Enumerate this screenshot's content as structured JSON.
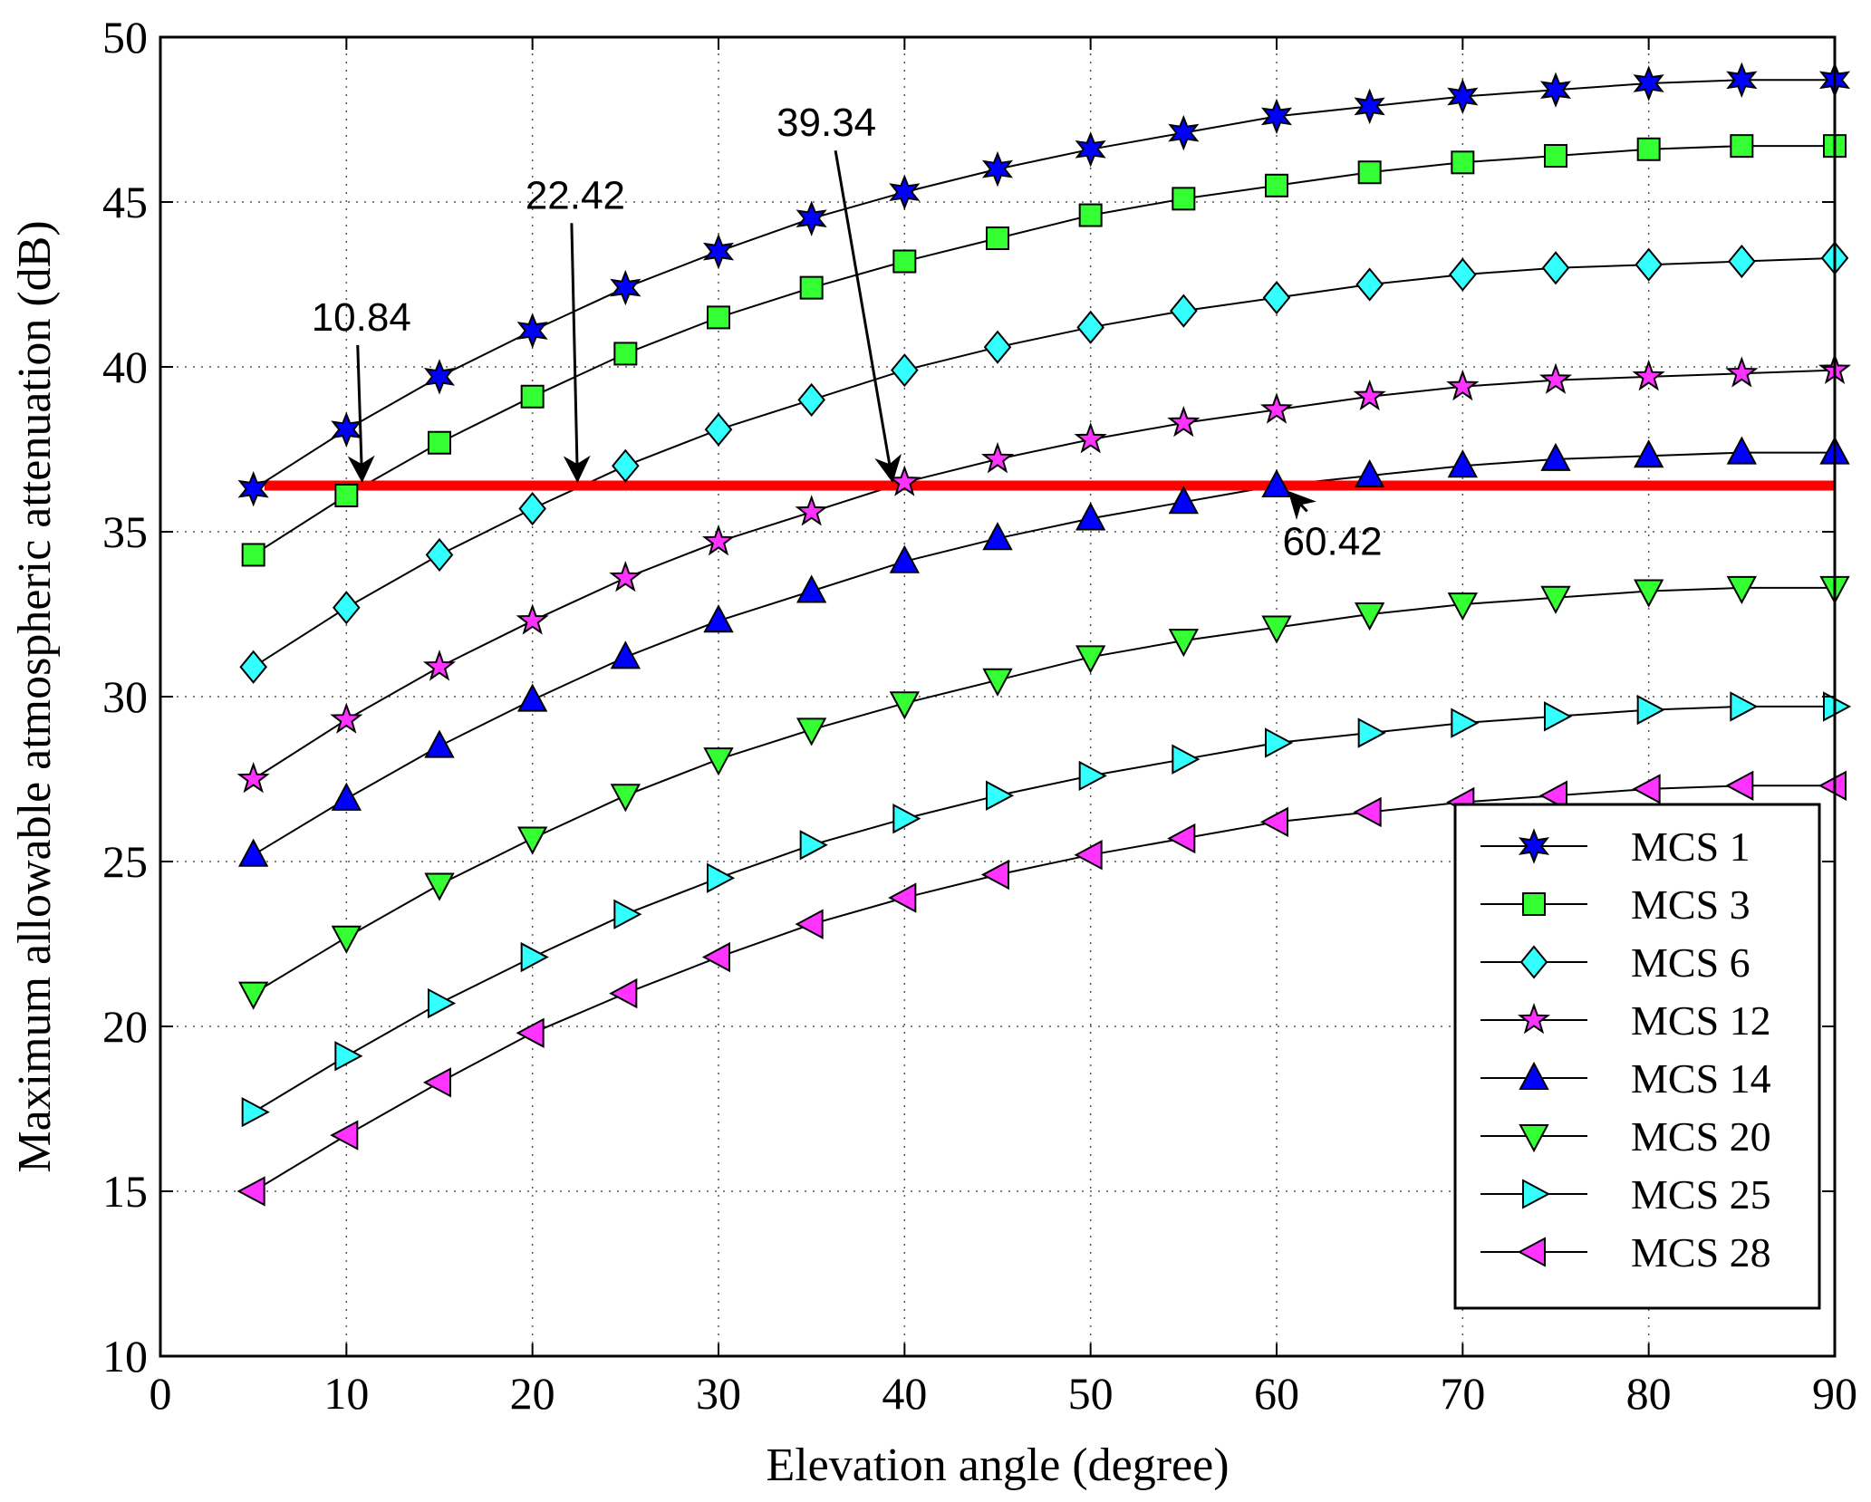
{
  "chart_data": {
    "type": "line",
    "title": "",
    "xlabel": "Elevation angle (degree)",
    "ylabel": "Maximum allowable atmospheric attenuation (dB)",
    "xlim": [
      0,
      90
    ],
    "ylim": [
      10,
      50
    ],
    "xticks": [
      0,
      10,
      20,
      30,
      40,
      50,
      60,
      70,
      80,
      90
    ],
    "yticks": [
      10,
      15,
      20,
      25,
      30,
      35,
      40,
      45,
      50
    ],
    "grid": true,
    "legend_position": "bottom-right",
    "x": [
      5,
      10,
      15,
      20,
      25,
      30,
      35,
      40,
      45,
      50,
      55,
      60,
      65,
      70,
      75,
      80,
      85,
      90
    ],
    "series": [
      {
        "name": "MCS 1",
        "marker": "hexagram",
        "color": "#0000ff",
        "values": [
          36.3,
          38.1,
          39.7,
          41.1,
          42.4,
          43.5,
          44.5,
          45.3,
          46.0,
          46.6,
          47.1,
          47.6,
          47.9,
          48.2,
          48.4,
          48.6,
          48.7,
          48.7
        ]
      },
      {
        "name": "MCS 3",
        "marker": "square",
        "color": "#33ff33",
        "values": [
          34.3,
          36.1,
          37.7,
          39.1,
          40.4,
          41.5,
          42.4,
          43.2,
          43.9,
          44.6,
          45.1,
          45.5,
          45.9,
          46.2,
          46.4,
          46.6,
          46.7,
          46.7
        ]
      },
      {
        "name": "MCS 6",
        "marker": "diamond",
        "color": "#33ffff",
        "values": [
          30.9,
          32.7,
          34.3,
          35.7,
          37.0,
          38.1,
          39.0,
          39.9,
          40.6,
          41.2,
          41.7,
          42.1,
          42.5,
          42.8,
          43.0,
          43.1,
          43.2,
          43.3
        ]
      },
      {
        "name": "MCS 12",
        "marker": "pentagram",
        "color": "#ff33ff",
        "values": [
          27.5,
          29.3,
          30.9,
          32.3,
          33.6,
          34.7,
          35.6,
          36.5,
          37.2,
          37.8,
          38.3,
          38.7,
          39.1,
          39.4,
          39.6,
          39.7,
          39.8,
          39.9
        ]
      },
      {
        "name": "MCS 14",
        "marker": "triangle-up",
        "color": "#0000ff",
        "values": [
          25.2,
          26.9,
          28.5,
          29.9,
          31.2,
          32.3,
          33.2,
          34.1,
          34.8,
          35.4,
          35.9,
          36.4,
          36.7,
          37.0,
          37.2,
          37.3,
          37.4,
          37.4
        ]
      },
      {
        "name": "MCS 20",
        "marker": "triangle-down",
        "color": "#33ff33",
        "values": [
          21.0,
          22.7,
          24.3,
          25.7,
          27.0,
          28.1,
          29.0,
          29.8,
          30.5,
          31.2,
          31.7,
          32.1,
          32.5,
          32.8,
          33.0,
          33.2,
          33.3,
          33.3
        ]
      },
      {
        "name": "MCS 25",
        "marker": "triangle-right",
        "color": "#33ffff",
        "values": [
          17.4,
          19.1,
          20.7,
          22.1,
          23.4,
          24.5,
          25.5,
          26.3,
          27.0,
          27.6,
          28.1,
          28.6,
          28.9,
          29.2,
          29.4,
          29.6,
          29.7,
          29.7
        ]
      },
      {
        "name": "MCS 28",
        "marker": "triangle-left",
        "color": "#ff33ff",
        "values": [
          15.0,
          16.7,
          18.3,
          19.8,
          21.0,
          22.1,
          23.1,
          23.9,
          24.6,
          25.2,
          25.7,
          26.2,
          26.5,
          26.8,
          27.0,
          27.2,
          27.3,
          27.3
        ]
      }
    ],
    "threshold_line": {
      "y": 36.4,
      "color": "#ff0000"
    },
    "annotations": [
      {
        "text": "10.84",
        "point": [
          10.84,
          36.4
        ],
        "label_at": [
          10.8,
          41.1
        ]
      },
      {
        "text": "22.42",
        "point": [
          22.42,
          36.4
        ],
        "label_at": [
          22.3,
          44.8
        ]
      },
      {
        "text": "39.34",
        "point": [
          39.34,
          36.4
        ],
        "label_at": [
          35.8,
          47.0
        ]
      },
      {
        "text": "60.42",
        "point": [
          60.42,
          36.4
        ],
        "label_at": [
          63.0,
          34.3
        ]
      }
    ]
  }
}
